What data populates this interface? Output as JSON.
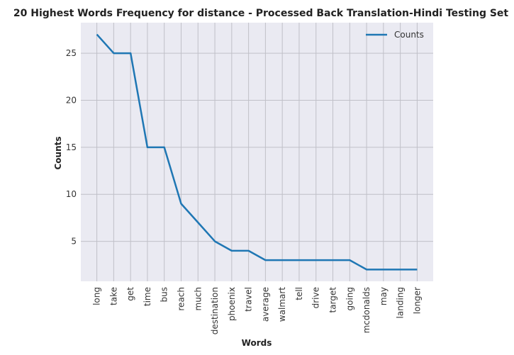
{
  "chart_data": {
    "type": "line",
    "title": "20 Highest Words Frequency for distance - Processed Back Translation-Hindi Testing Set",
    "xlabel": "Words",
    "ylabel": "Counts",
    "categories": [
      "long",
      "take",
      "get",
      "time",
      "bus",
      "reach",
      "much",
      "destination",
      "phoenix",
      "travel",
      "average",
      "walmart",
      "tell",
      "drive",
      "target",
      "going",
      "mcdonalds",
      "may",
      "landing",
      "longer"
    ],
    "series": [
      {
        "name": "Counts",
        "values": [
          27,
          25,
          25,
          15,
          15,
          9,
          7,
          5,
          4,
          4,
          3,
          3,
          3,
          3,
          3,
          3,
          2,
          2,
          2,
          2
        ]
      }
    ],
    "ylim": [
      0.75,
      28.25
    ],
    "yticks": [
      5,
      10,
      15,
      20,
      25
    ],
    "grid": true,
    "legend_position": "top-right",
    "colors": {
      "line": "#1f77b4",
      "plot_background": "#eaeaf2",
      "grid": "#c0c0c8"
    }
  }
}
